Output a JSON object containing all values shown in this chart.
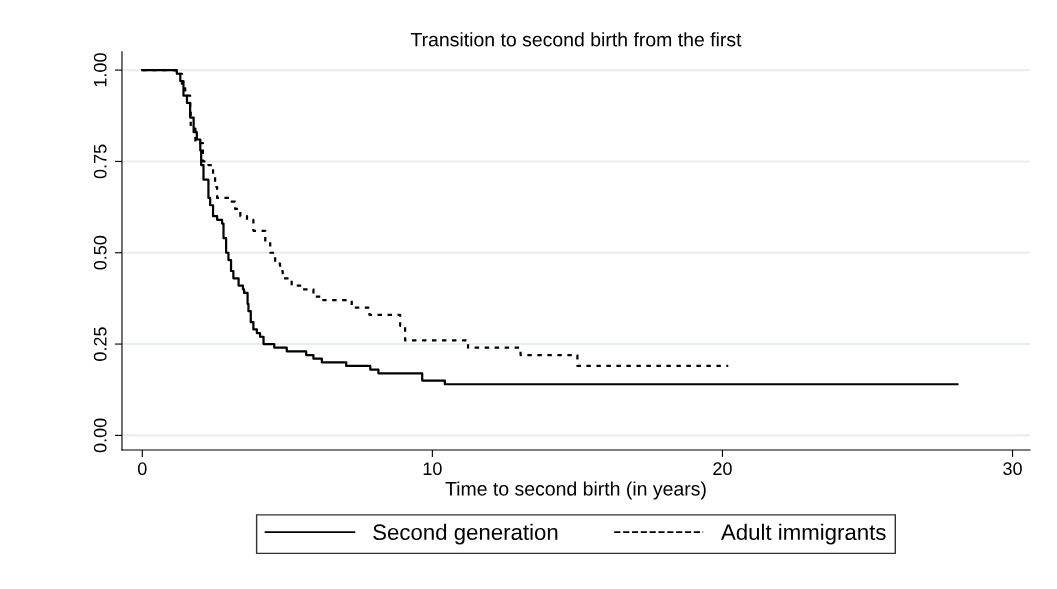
{
  "chart_data": {
    "type": "step",
    "title": "Transition to second birth from the first",
    "xlabel": "Time to second birth (in years)",
    "xlim": [
      -0.7,
      30.6
    ],
    "xticks": [
      0,
      10,
      20,
      30
    ],
    "ylim": [
      -0.04,
      1.05
    ],
    "yticks": [
      {
        "value": 0,
        "label": "0.00"
      },
      {
        "value": 0.25,
        "label": "0.25"
      },
      {
        "value": 0.5,
        "label": "0.50"
      },
      {
        "value": 0.75,
        "label": "0.75"
      },
      {
        "value": 1,
        "label": "1.00"
      }
    ],
    "grid": "y",
    "legend": "bottom",
    "series": [
      {
        "name": "Second generation",
        "color": "#000000",
        "line_style": "solid",
        "x": [
          0,
          1.19,
          1.31,
          1.42,
          1.54,
          1.65,
          1.77,
          1.88,
          2.0,
          2.03,
          2.11,
          2.28,
          2.34,
          2.44,
          2.58,
          2.75,
          2.8,
          2.89,
          2.97,
          3.06,
          3.14,
          3.32,
          3.47,
          3.51,
          3.63,
          3.66,
          3.74,
          3.83,
          3.95,
          4.06,
          4.18,
          4.55,
          4.98,
          5.65,
          5.9,
          6.19,
          7.03,
          7.86,
          8.14,
          9.65,
          10.43,
          28.1
        ],
        "values": [
          1.0,
          0.99,
          0.97,
          0.93,
          0.91,
          0.87,
          0.83,
          0.81,
          0.78,
          0.74,
          0.7,
          0.65,
          0.63,
          0.6,
          0.59,
          0.58,
          0.54,
          0.5,
          0.48,
          0.45,
          0.43,
          0.41,
          0.4,
          0.39,
          0.36,
          0.34,
          0.31,
          0.29,
          0.28,
          0.27,
          0.25,
          0.24,
          0.23,
          0.22,
          0.21,
          0.2,
          0.19,
          0.18,
          0.17,
          0.15,
          0.14,
          0.14
        ]
      },
      {
        "name": "Adult immigrants",
        "color": "#000000",
        "line_style": "dotted",
        "x": [
          0,
          1.14,
          1.37,
          1.48,
          1.65,
          1.67,
          1.83,
          2.09,
          2.28,
          2.44,
          2.51,
          2.58,
          3.02,
          3.2,
          3.38,
          3.61,
          3.83,
          4.24,
          4.41,
          4.58,
          4.75,
          4.84,
          5.15,
          5.5,
          5.9,
          6.24,
          7.22,
          7.83,
          8.89,
          9.06,
          11.23,
          13.04,
          15.0,
          20.2
        ],
        "values": [
          1.0,
          0.99,
          0.95,
          0.93,
          0.89,
          0.84,
          0.8,
          0.75,
          0.74,
          0.71,
          0.68,
          0.65,
          0.64,
          0.62,
          0.6,
          0.59,
          0.56,
          0.53,
          0.5,
          0.47,
          0.45,
          0.43,
          0.41,
          0.4,
          0.38,
          0.37,
          0.35,
          0.33,
          0.3,
          0.26,
          0.24,
          0.22,
          0.19,
          0.19
        ]
      }
    ]
  }
}
